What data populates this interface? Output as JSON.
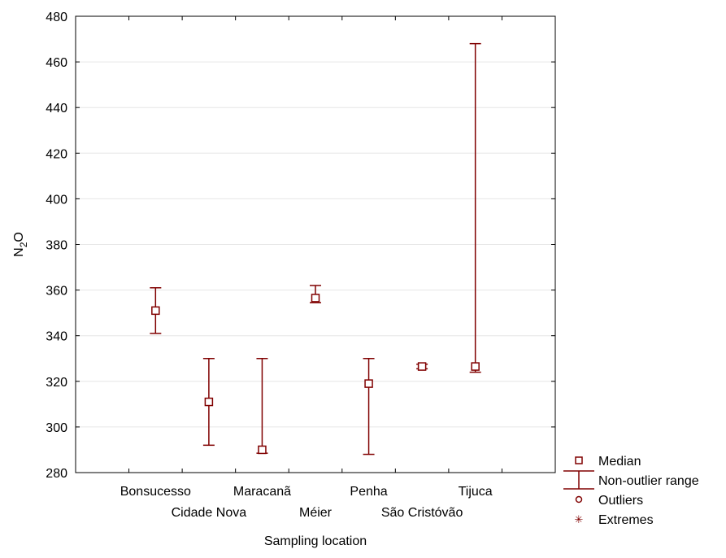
{
  "chart_data": {
    "type": "boxplot",
    "title": "",
    "xlabel": "Sampling location",
    "ylabel": {
      "main": "N",
      "sub": "2",
      "tail": "O"
    },
    "ylim": [
      280,
      480
    ],
    "yticks": [
      280,
      300,
      320,
      340,
      360,
      380,
      400,
      420,
      440,
      460,
      480
    ],
    "grid": true,
    "legend_position": "bottom-right",
    "colors": {
      "series": "#800000",
      "grid": "#e6e6e6",
      "axis": "#000000"
    },
    "categories": [
      "Bonsucesso",
      "Cidade Nova",
      "Maracanã",
      "Méier",
      "Penha",
      "São Cristóvão",
      "Tijuca"
    ],
    "label_rows": [
      0,
      1,
      0,
      1,
      0,
      1,
      0
    ],
    "median": [
      351,
      311,
      290,
      356.5,
      319,
      326.5,
      326.5
    ],
    "nonoutlier_min": [
      341,
      292,
      288.5,
      354.5,
      288,
      325.5,
      324
    ],
    "nonoutlier_max": [
      361,
      330,
      330,
      362,
      330,
      327.5,
      468
    ],
    "legend": [
      "Median",
      "Non-outlier range",
      "Outliers",
      "Extremes"
    ]
  }
}
